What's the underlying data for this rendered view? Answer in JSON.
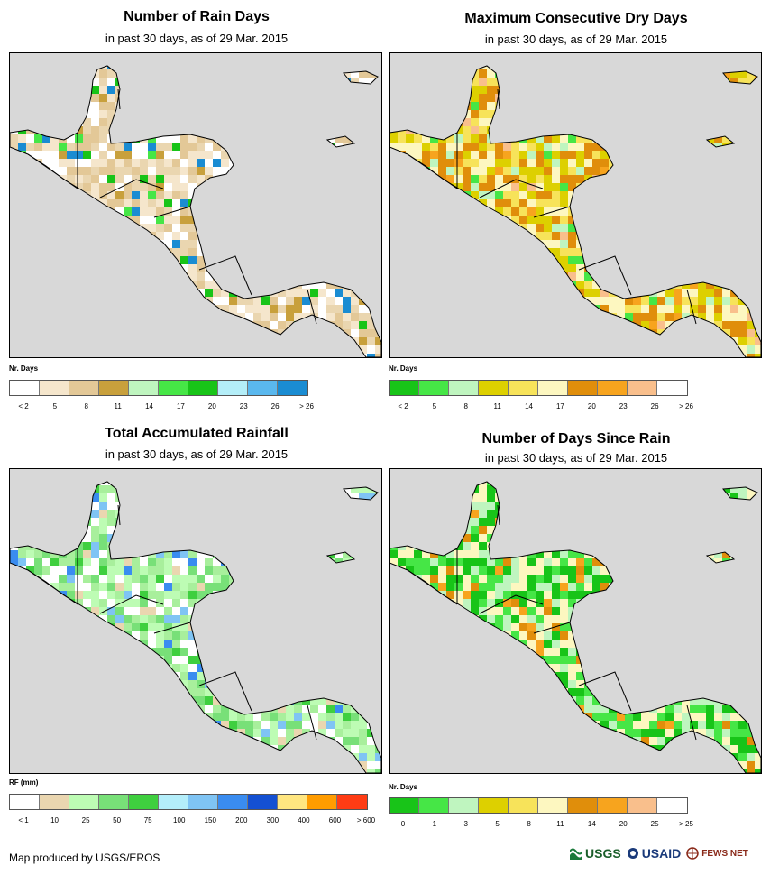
{
  "colors": {
    "ocean": "#d8d8d8",
    "land_base": "#ffffff",
    "border": "#000000"
  },
  "panels": [
    {
      "id": "rain-days",
      "title": "Number of Rain Days",
      "subtitle": "in past 30 days, as of 29 Mar. 2015",
      "legend_label": "Nr. Days",
      "legend_colors": [
        "#ffffff",
        "#f5e6cc",
        "#e3c897",
        "#c8a03c",
        "#bff5bf",
        "#46e646",
        "#18c418",
        "#b4eef8",
        "#5ab8ee",
        "#1a8cd2"
      ],
      "ticks": [
        "< 2",
        "5",
        "8",
        "11",
        "14",
        "17",
        "20",
        "23",
        "26",
        "> 26"
      ],
      "land_palette": [
        "#ffffff",
        "#f5e6cc",
        "#ead6b0",
        "#e3c897"
      ],
      "accent_palette": [
        "#46e646",
        "#18c418",
        "#1a8cd2",
        "#c8a03c"
      ]
    },
    {
      "id": "max-dry-days",
      "title": "Maximum Consecutive Dry Days",
      "subtitle": "in past 30 days, as of 29 Mar. 2015",
      "legend_label": "Nr. Days",
      "legend_colors": [
        "#18c418",
        "#46e646",
        "#bff5bf",
        "#ddd000",
        "#f7e35a",
        "#fdf7c0",
        "#e08e0b",
        "#f7a41e",
        "#f9bf8c",
        "#ffffff"
      ],
      "ticks": [
        "< 2",
        "5",
        "8",
        "11",
        "14",
        "17",
        "20",
        "23",
        "26",
        "> 26"
      ],
      "land_palette": [
        "#fdf7c0",
        "#f7e35a",
        "#ddd000",
        "#e08e0b"
      ],
      "accent_palette": [
        "#46e646",
        "#bff5bf",
        "#f7a41e",
        "#f9bf8c"
      ]
    },
    {
      "id": "total-rainfall",
      "title": "Total Accumulated Rainfall",
      "subtitle": "in past 30 days, as of 29 Mar. 2015",
      "legend_label": "RF (mm)",
      "legend_colors": [
        "#ffffff",
        "#ead6b0",
        "#bdfcb4",
        "#78e078",
        "#3fcf3f",
        "#b4eefa",
        "#7fc4f4",
        "#3a8cf0",
        "#1450d2",
        "#ffe680",
        "#ff9c00",
        "#ff3c14"
      ],
      "ticks": [
        "< 1",
        "10",
        "25",
        "50",
        "75",
        "100",
        "150",
        "200",
        "300",
        "400",
        "600",
        "> 600"
      ],
      "land_palette": [
        "#bdfcb4",
        "#78e078",
        "#a8ef9c",
        "#ffffff"
      ],
      "accent_palette": [
        "#3fcf3f",
        "#3a8cf0",
        "#7fc4f4",
        "#ead6b0"
      ]
    },
    {
      "id": "days-since-rain",
      "title": "Number of Days Since Rain",
      "subtitle": "in past 30 days, as of 29 Mar. 2015",
      "legend_label": "Nr. Days",
      "legend_colors": [
        "#18c418",
        "#46e646",
        "#bff5bf",
        "#ddd000",
        "#f7e35a",
        "#fdf7c0",
        "#e08e0b",
        "#f7a41e",
        "#f9bf8c",
        "#ffffff"
      ],
      "ticks": [
        "0",
        "1",
        "3",
        "5",
        "8",
        "11",
        "14",
        "20",
        "25",
        "> 25"
      ],
      "land_palette": [
        "#18c418",
        "#46e646",
        "#fdf7c0",
        "#bff5bf"
      ],
      "accent_palette": [
        "#e08e0b",
        "#f7a41e",
        "#fdf7c0",
        "#18c418"
      ]
    }
  ],
  "footer": {
    "credit": "Map produced by USGS/EROS"
  },
  "logos": [
    "USGS",
    "USAID",
    "FEWS NET"
  ]
}
